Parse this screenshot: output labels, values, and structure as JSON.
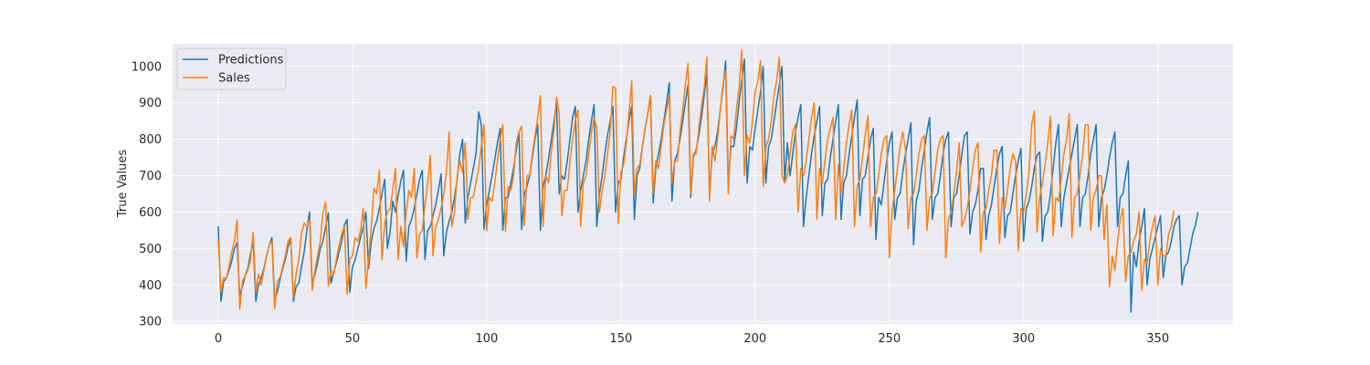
{
  "chart_data": {
    "type": "line",
    "title": "",
    "xlabel": "",
    "ylabel": "True Values",
    "xlim": [
      -17,
      378
    ],
    "ylim": [
      293,
      1062
    ],
    "xticks": [
      0,
      50,
      100,
      150,
      200,
      250,
      300,
      350
    ],
    "yticks": [
      300,
      400,
      500,
      600,
      700,
      800,
      900,
      1000
    ],
    "grid": true,
    "legend_position": "top-left",
    "n_points": 365,
    "series": [
      {
        "name": "Predictions",
        "color": "#1f77b4",
        "values": [
          561,
          355,
          410,
          418,
          440,
          465,
          500,
          515,
          372,
          395,
          425,
          445,
          485,
          520,
          355,
          400,
          420,
          445,
          480,
          510,
          530,
          360,
          380,
          415,
          445,
          470,
          505,
          525,
          355,
          395,
          405,
          450,
          490,
          550,
          600,
          400,
          430,
          460,
          500,
          520,
          560,
          598,
          405,
          435,
          460,
          490,
          520,
          565,
          580,
          380,
          450,
          470,
          500,
          530,
          560,
          600,
          445,
          520,
          555,
          575,
          610,
          650,
          690,
          500,
          545,
          630,
          600,
          645,
          685,
          715,
          465,
          560,
          580,
          610,
          650,
          690,
          715,
          470,
          550,
          560,
          590,
          620,
          660,
          705,
          480,
          545,
          575,
          600,
          640,
          690,
          760,
          800,
          570,
          640,
          680,
          720,
          760,
          875,
          840,
          553,
          620,
          660,
          700,
          745,
          790,
          830,
          550,
          640,
          640,
          680,
          720,
          770,
          820,
          552,
          650,
          670,
          700,
          750,
          800,
          840,
          550,
          670,
          700,
          745,
          795,
          845,
          900,
          650,
          700,
          690,
          740,
          800,
          860,
          890,
          600,
          660,
          700,
          740,
          800,
          850,
          895,
          560,
          650,
          700,
          760,
          810,
          850,
          890,
          600,
          680,
          690,
          750,
          800,
          850,
          890,
          580,
          700,
          720,
          780,
          830,
          870,
          920,
          625,
          720,
          760,
          800,
          850,
          900,
          955,
          630,
          740,
          760,
          800,
          850,
          900,
          950,
          640,
          750,
          770,
          810,
          860,
          920,
          980,
          650,
          760,
          780,
          820,
          880,
          940,
          1015,
          680,
          780,
          780,
          830,
          900,
          960,
          1020,
          680,
          780,
          770,
          830,
          880,
          930,
          1000,
          680,
          780,
          800,
          850,
          900,
          950,
          1000,
          680,
          790,
          700,
          760,
          820,
          860,
          895,
          560,
          640,
          700,
          760,
          810,
          850,
          890,
          590,
          680,
          690,
          750,
          800,
          850,
          895,
          580,
          680,
          700,
          760,
          810,
          860,
          908,
          590,
          690,
          700,
          750,
          800,
          830,
          525,
          640,
          620,
          680,
          740,
          790,
          820,
          580,
          640,
          650,
          710,
          760,
          800,
          845,
          510,
          630,
          660,
          720,
          770,
          820,
          860,
          580,
          640,
          650,
          700,
          760,
          800,
          820,
          560,
          640,
          650,
          700,
          760,
          810,
          820,
          540,
          600,
          620,
          660,
          720,
          720,
          525,
          590,
          620,
          670,
          720,
          760,
          780,
          530,
          590,
          600,
          650,
          700,
          740,
          775,
          520,
          610,
          630,
          670,
          720,
          755,
          765,
          520,
          590,
          600,
          650,
          720,
          790,
          840,
          560,
          640,
          680,
          720,
          760,
          800,
          840,
          560,
          640,
          650,
          700,
          760,
          800,
          840,
          560,
          640,
          660,
          700,
          750,
          790,
          820,
          560,
          640,
          650,
          700,
          740,
          325,
          490,
          450,
          520,
          560,
          610,
          400,
          470,
          500,
          530,
          560,
          590,
          420,
          480,
          490,
          520,
          560,
          580,
          590,
          400,
          450,
          460,
          500,
          540,
          565,
          600
        ]
      },
      {
        "name": "Sales",
        "color": "#ff7f0e",
        "values": [
          525,
          380,
          420,
          418,
          450,
          490,
          520,
          578,
          333,
          410,
          425,
          440,
          470,
          545,
          380,
          430,
          400,
          440,
          480,
          510,
          520,
          335,
          410,
          420,
          450,
          480,
          520,
          530,
          365,
          430,
          470,
          540,
          570,
          560,
          580,
          385,
          440,
          480,
          520,
          600,
          628,
          398,
          440,
          430,
          470,
          510,
          540,
          560,
          375,
          470,
          480,
          530,
          520,
          550,
          610,
          390,
          470,
          560,
          665,
          650,
          715,
          470,
          570,
          600,
          610,
          660,
          720,
          470,
          560,
          505,
          600,
          660,
          640,
          720,
          475,
          540,
          550,
          620,
          680,
          755,
          480,
          560,
          580,
          610,
          650,
          710,
          820,
          560,
          600,
          700,
          740,
          710,
          790,
          580,
          640,
          640,
          680,
          720,
          780,
          840,
          550,
          640,
          630,
          680,
          740,
          800,
          840,
          548,
          670,
          660,
          700,
          790,
          820,
          835,
          562,
          700,
          700,
          760,
          810,
          860,
          920,
          560,
          700,
          680,
          760,
          820,
          915,
          870,
          590,
          660,
          660,
          740,
          800,
          850,
          880,
          560,
          680,
          700,
          760,
          820,
          860,
          830,
          600,
          660,
          700,
          760,
          820,
          945,
          940,
          570,
          710,
          730,
          790,
          870,
          960,
          650,
          720,
          730,
          780,
          830,
          870,
          920,
          650,
          740,
          720,
          780,
          840,
          880,
          920,
          680,
          740,
          740,
          820,
          880,
          950,
          1008,
          650,
          760,
          760,
          830,
          890,
          940,
          1025,
          630,
          780,
          740,
          800,
          880,
          950,
          990,
          650,
          810,
          800,
          880,
          940,
          1045,
          700,
          810,
          790,
          850,
          930,
          960,
          1015,
          670,
          780,
          800,
          850,
          920,
          960,
          1025,
          700,
          680,
          700,
          760,
          820,
          840,
          600,
          720,
          700,
          740,
          800,
          860,
          900,
          580,
          720,
          680,
          740,
          800,
          830,
          860,
          580,
          730,
          650,
          720,
          790,
          840,
          880,
          560,
          670,
          690,
          750,
          810,
          865,
          560,
          640,
          650,
          700,
          760,
          800,
          810,
          475,
          600,
          660,
          720,
          780,
          820,
          770,
          555,
          640,
          650,
          700,
          760,
          800,
          810,
          550,
          640,
          650,
          710,
          770,
          800,
          810,
          475,
          580,
          600,
          650,
          710,
          790,
          560,
          580,
          610,
          660,
          720,
          770,
          790,
          490,
          600,
          610,
          660,
          700,
          770,
          770,
          515,
          640,
          610,
          660,
          720,
          760,
          740,
          495,
          610,
          600,
          650,
          710,
          840,
          878,
          545,
          640,
          680,
          730,
          790,
          862,
          535,
          640,
          630,
          690,
          760,
          800,
          870,
          530,
          640,
          650,
          700,
          760,
          840,
          840,
          550,
          640,
          660,
          700,
          700,
          525,
          620,
          395,
          480,
          440,
          520,
          580,
          610,
          410,
          480,
          490,
          520,
          540,
          600,
          385,
          470,
          460,
          520,
          560,
          590,
          400,
          500,
          480,
          480,
          540,
          560,
          605
        ]
      }
    ]
  }
}
